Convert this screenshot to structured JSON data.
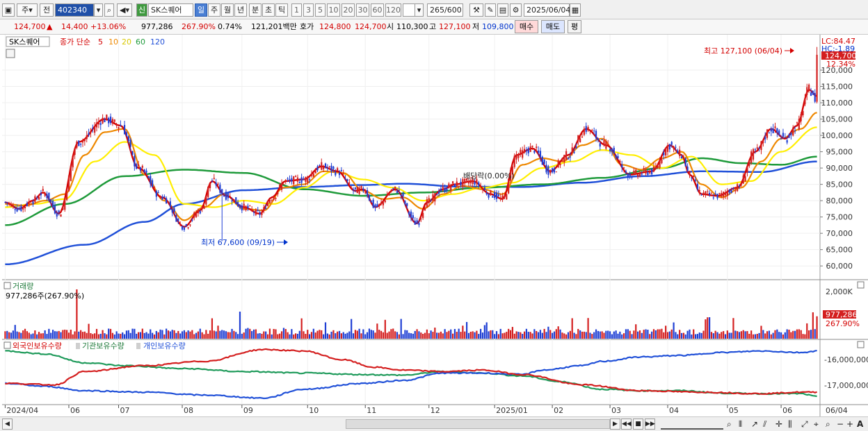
{
  "toolbar": {
    "period_label": "주",
    "prev_label": "전",
    "code": "402340",
    "new_badge": "신",
    "stock_name": "SK스퀘어",
    "tabs": [
      "일",
      "주",
      "월",
      "년",
      "분",
      "초",
      "틱"
    ],
    "intervals": [
      "1",
      "3",
      "5",
      "10",
      "20",
      "30",
      "60",
      "120"
    ],
    "count": "265",
    "count_total": "/600",
    "date": "2025/06/04"
  },
  "info": {
    "price": "124,700",
    "arrow": "▲",
    "change": "14,400",
    "change_pct": "+13.06%",
    "volume": "977,286",
    "volume_pct": "267.90%",
    "turnover": "0.74%",
    "amount": "121,201백만",
    "quote_label": "호가",
    "ask": "124,800",
    "bid": "124,700",
    "open_label": "시",
    "open": "110,300",
    "high_label": "고",
    "high": "127,100",
    "low_label": "저",
    "low": "109,800",
    "buy_label": "매수",
    "sell_label": "매도",
    "avg_label": "평"
  },
  "price_panel": {
    "stock_tag": "SK스퀘어",
    "ma_label": "종가 단순",
    "ma_periods": [
      "5",
      "10",
      "20",
      "60",
      "120"
    ],
    "lc_label": "LC:84.47",
    "hc_label": "HC:-1.89",
    "current_price_tag": "124,700",
    "current_pct_tag": "12.34%",
    "high_note": "최고 127,100 (06/04)",
    "low_note": "최저 67,600 (09/19)",
    "dividend_note": "배당락(0.00%)"
  },
  "volume_panel": {
    "title": "거래량",
    "subtitle": "977,286주(267.90%)",
    "axis_tick": "2,000K",
    "tag_value": "977,286",
    "tag_pct": "267.90%"
  },
  "holding_panel": {
    "legend": [
      "외국인보유수량",
      "기관보유수량",
      "개인보유수량"
    ],
    "ticks": [
      "-16,000,000",
      "-17,000,000"
    ]
  },
  "xaxis": {
    "labels": [
      "2024/04",
      "06",
      "07",
      "08",
      "09",
      "10",
      "11",
      "12",
      "2025/01",
      "02",
      "03",
      "04",
      "05",
      "06"
    ],
    "right_label": "06/04"
  },
  "chart_data": {
    "type": "candlestick",
    "title": "SK스퀘어",
    "y_ticks": [
      60000,
      65000,
      70000,
      75000,
      80000,
      85000,
      90000,
      95000,
      100000,
      105000,
      110000,
      115000,
      120000
    ],
    "ylim": [
      56000,
      130000
    ],
    "high": {
      "value": 127100,
      "date": "06/04"
    },
    "low": {
      "value": 67600,
      "date": "09/19"
    },
    "last": 124700,
    "colors": {
      "up": "#d41f1f",
      "down": "#1f3fd4",
      "ma5": "#d40000",
      "ma10": "#ee8800",
      "ma20": "#ffee00",
      "ma60": "#1e9a3a",
      "ma120": "#2050d8"
    },
    "ma_anchors": {
      "ma5": [
        [
          0,
          79500
        ],
        [
          7,
          77500
        ],
        [
          14,
          80000
        ],
        [
          19,
          82500
        ],
        [
          27,
          76000
        ],
        [
          37,
          98000
        ],
        [
          50,
          105000
        ],
        [
          58,
          103000
        ],
        [
          67,
          90000
        ],
        [
          79,
          81000
        ],
        [
          90,
          72000
        ],
        [
          98,
          77000
        ],
        [
          104,
          86000
        ],
        [
          111,
          81500
        ],
        [
          120,
          78000
        ],
        [
          128,
          76000
        ],
        [
          134,
          81000
        ],
        [
          141,
          86000
        ],
        [
          150,
          86500
        ],
        [
          159,
          90500
        ],
        [
          167,
          89000
        ],
        [
          176,
          83000
        ],
        [
          180,
          83500
        ],
        [
          186,
          78000
        ],
        [
          196,
          83500
        ],
        [
          207,
          73000
        ],
        [
          212,
          79500
        ],
        [
          220,
          83500
        ],
        [
          226,
          85000
        ],
        [
          235,
          86000
        ],
        [
          244,
          82000
        ],
        [
          250,
          80500
        ],
        [
          257,
          94000
        ],
        [
          265,
          96000
        ],
        [
          274,
          89000
        ],
        [
          283,
          94000
        ],
        [
          292,
          102000
        ],
        [
          302,
          97000
        ],
        [
          314,
          88000
        ],
        [
          325,
          89000
        ],
        [
          334,
          97000
        ],
        [
          340,
          94000
        ],
        [
          344,
          88000
        ],
        [
          350,
          82000
        ],
        [
          358,
          81500
        ],
        [
          368,
          84000
        ],
        [
          377,
          95000
        ],
        [
          385,
          102000
        ],
        [
          392,
          99000
        ],
        [
          398,
          103000
        ],
        [
          404,
          114000
        ],
        [
          408,
          112000
        ]
      ],
      "ma10": [
        [
          0,
          79000
        ],
        [
          10,
          78500
        ],
        [
          20,
          80000
        ],
        [
          30,
          82000
        ],
        [
          40,
          94000
        ],
        [
          50,
          101000
        ],
        [
          60,
          102000
        ],
        [
          70,
          88000
        ],
        [
          80,
          80000
        ],
        [
          90,
          74000
        ],
        [
          100,
          78000
        ],
        [
          110,
          82000
        ],
        [
          120,
          77500
        ],
        [
          130,
          77000
        ],
        [
          140,
          84000
        ],
        [
          150,
          85000
        ],
        [
          160,
          89000
        ],
        [
          170,
          88500
        ],
        [
          180,
          83000
        ],
        [
          190,
          80500
        ],
        [
          200,
          81000
        ],
        [
          210,
          77500
        ],
        [
          220,
          82000
        ],
        [
          230,
          84500
        ],
        [
          240,
          83500
        ],
        [
          250,
          82000
        ],
        [
          260,
          91000
        ],
        [
          270,
          93000
        ],
        [
          280,
          92000
        ],
        [
          290,
          97000
        ],
        [
          300,
          99000
        ],
        [
          310,
          91000
        ],
        [
          320,
          89500
        ],
        [
          330,
          93000
        ],
        [
          340,
          95000
        ],
        [
          350,
          85000
        ],
        [
          360,
          81000
        ],
        [
          370,
          84000
        ],
        [
          380,
          92000
        ],
        [
          390,
          99000
        ],
        [
          400,
          102000
        ],
        [
          408,
          107000
        ]
      ],
      "ma20": [
        [
          0,
          78000
        ],
        [
          15,
          79000
        ],
        [
          30,
          80500
        ],
        [
          45,
          92000
        ],
        [
          60,
          98000
        ],
        [
          75,
          94000
        ],
        [
          90,
          79000
        ],
        [
          105,
          78000
        ],
        [
          120,
          80000
        ],
        [
          135,
          79000
        ],
        [
          150,
          84000
        ],
        [
          165,
          89000
        ],
        [
          180,
          86500
        ],
        [
          195,
          84000
        ],
        [
          210,
          80000
        ],
        [
          225,
          82000
        ],
        [
          240,
          84000
        ],
        [
          255,
          85500
        ],
        [
          270,
          90000
        ],
        [
          285,
          92000
        ],
        [
          300,
          95500
        ],
        [
          315,
          94000
        ],
        [
          330,
          90000
        ],
        [
          345,
          93500
        ],
        [
          360,
          85000
        ],
        [
          375,
          86000
        ],
        [
          390,
          95000
        ],
        [
          408,
          102500
        ]
      ],
      "ma60": [
        [
          0,
          72500
        ],
        [
          30,
          79000
        ],
        [
          60,
          87500
        ],
        [
          90,
          89500
        ],
        [
          120,
          88500
        ],
        [
          150,
          83500
        ],
        [
          180,
          81500
        ],
        [
          210,
          82500
        ],
        [
          240,
          84000
        ],
        [
          270,
          85000
        ],
        [
          300,
          87000
        ],
        [
          330,
          90000
        ],
        [
          350,
          93000
        ],
        [
          370,
          91500
        ],
        [
          390,
          91000
        ],
        [
          408,
          93500
        ]
      ],
      "ma120": [
        [
          0,
          60500
        ],
        [
          40,
          66500
        ],
        [
          70,
          73500
        ],
        [
          90,
          79000
        ],
        [
          120,
          83200
        ],
        [
          150,
          84200
        ],
        [
          180,
          84800
        ],
        [
          200,
          85200
        ],
        [
          230,
          84300
        ],
        [
          260,
          84200
        ],
        [
          290,
          85500
        ],
        [
          320,
          87500
        ],
        [
          350,
          89000
        ],
        [
          380,
          88800
        ],
        [
          408,
          92000
        ]
      ]
    },
    "holdings": {
      "yrange": [
        -17700000,
        -15600000
      ],
      "foreign": [
        [
          0,
          -17000000
        ],
        [
          25,
          -17050000
        ],
        [
          40,
          -16600000
        ],
        [
          70,
          -16400000
        ],
        [
          100,
          -16250000
        ],
        [
          130,
          -15850000
        ],
        [
          150,
          -15900000
        ],
        [
          170,
          -16200000
        ],
        [
          185,
          -16450000
        ],
        [
          200,
          -16550000
        ],
        [
          220,
          -16600000
        ],
        [
          240,
          -16550000
        ],
        [
          260,
          -16700000
        ],
        [
          290,
          -17050000
        ],
        [
          320,
          -17250000
        ],
        [
          350,
          -17300000
        ],
        [
          380,
          -17350000
        ],
        [
          400,
          -17300000
        ],
        [
          408,
          -17300000
        ]
      ],
      "institution": [
        [
          0,
          -15900000
        ],
        [
          20,
          -16000000
        ],
        [
          40,
          -16300000
        ],
        [
          60,
          -16400000
        ],
        [
          90,
          -16500000
        ],
        [
          120,
          -16600000
        ],
        [
          150,
          -16650000
        ],
        [
          180,
          -16700000
        ],
        [
          200,
          -16720000
        ],
        [
          220,
          -16600000
        ],
        [
          240,
          -16650000
        ],
        [
          260,
          -16750000
        ],
        [
          280,
          -16950000
        ],
        [
          300,
          -17200000
        ],
        [
          320,
          -17250000
        ],
        [
          340,
          -17250000
        ],
        [
          360,
          -17330000
        ],
        [
          380,
          -17350000
        ],
        [
          400,
          -17350000
        ],
        [
          408,
          -17450000
        ]
      ],
      "individual": [
        [
          0,
          -17000000
        ],
        [
          20,
          -17100000
        ],
        [
          40,
          -17250000
        ],
        [
          70,
          -17300000
        ],
        [
          100,
          -17400000
        ],
        [
          130,
          -17500000
        ],
        [
          150,
          -17200000
        ],
        [
          180,
          -17000000
        ],
        [
          200,
          -16900000
        ],
        [
          220,
          -16650000
        ],
        [
          240,
          -16650000
        ],
        [
          260,
          -16700000
        ],
        [
          270,
          -16550000
        ],
        [
          290,
          -16400000
        ],
        [
          300,
          -16250000
        ],
        [
          320,
          -16100000
        ],
        [
          340,
          -16050000
        ],
        [
          360,
          -15950000
        ],
        [
          380,
          -15900000
        ],
        [
          400,
          -15950000
        ],
        [
          408,
          -15900000
        ]
      ]
    }
  }
}
